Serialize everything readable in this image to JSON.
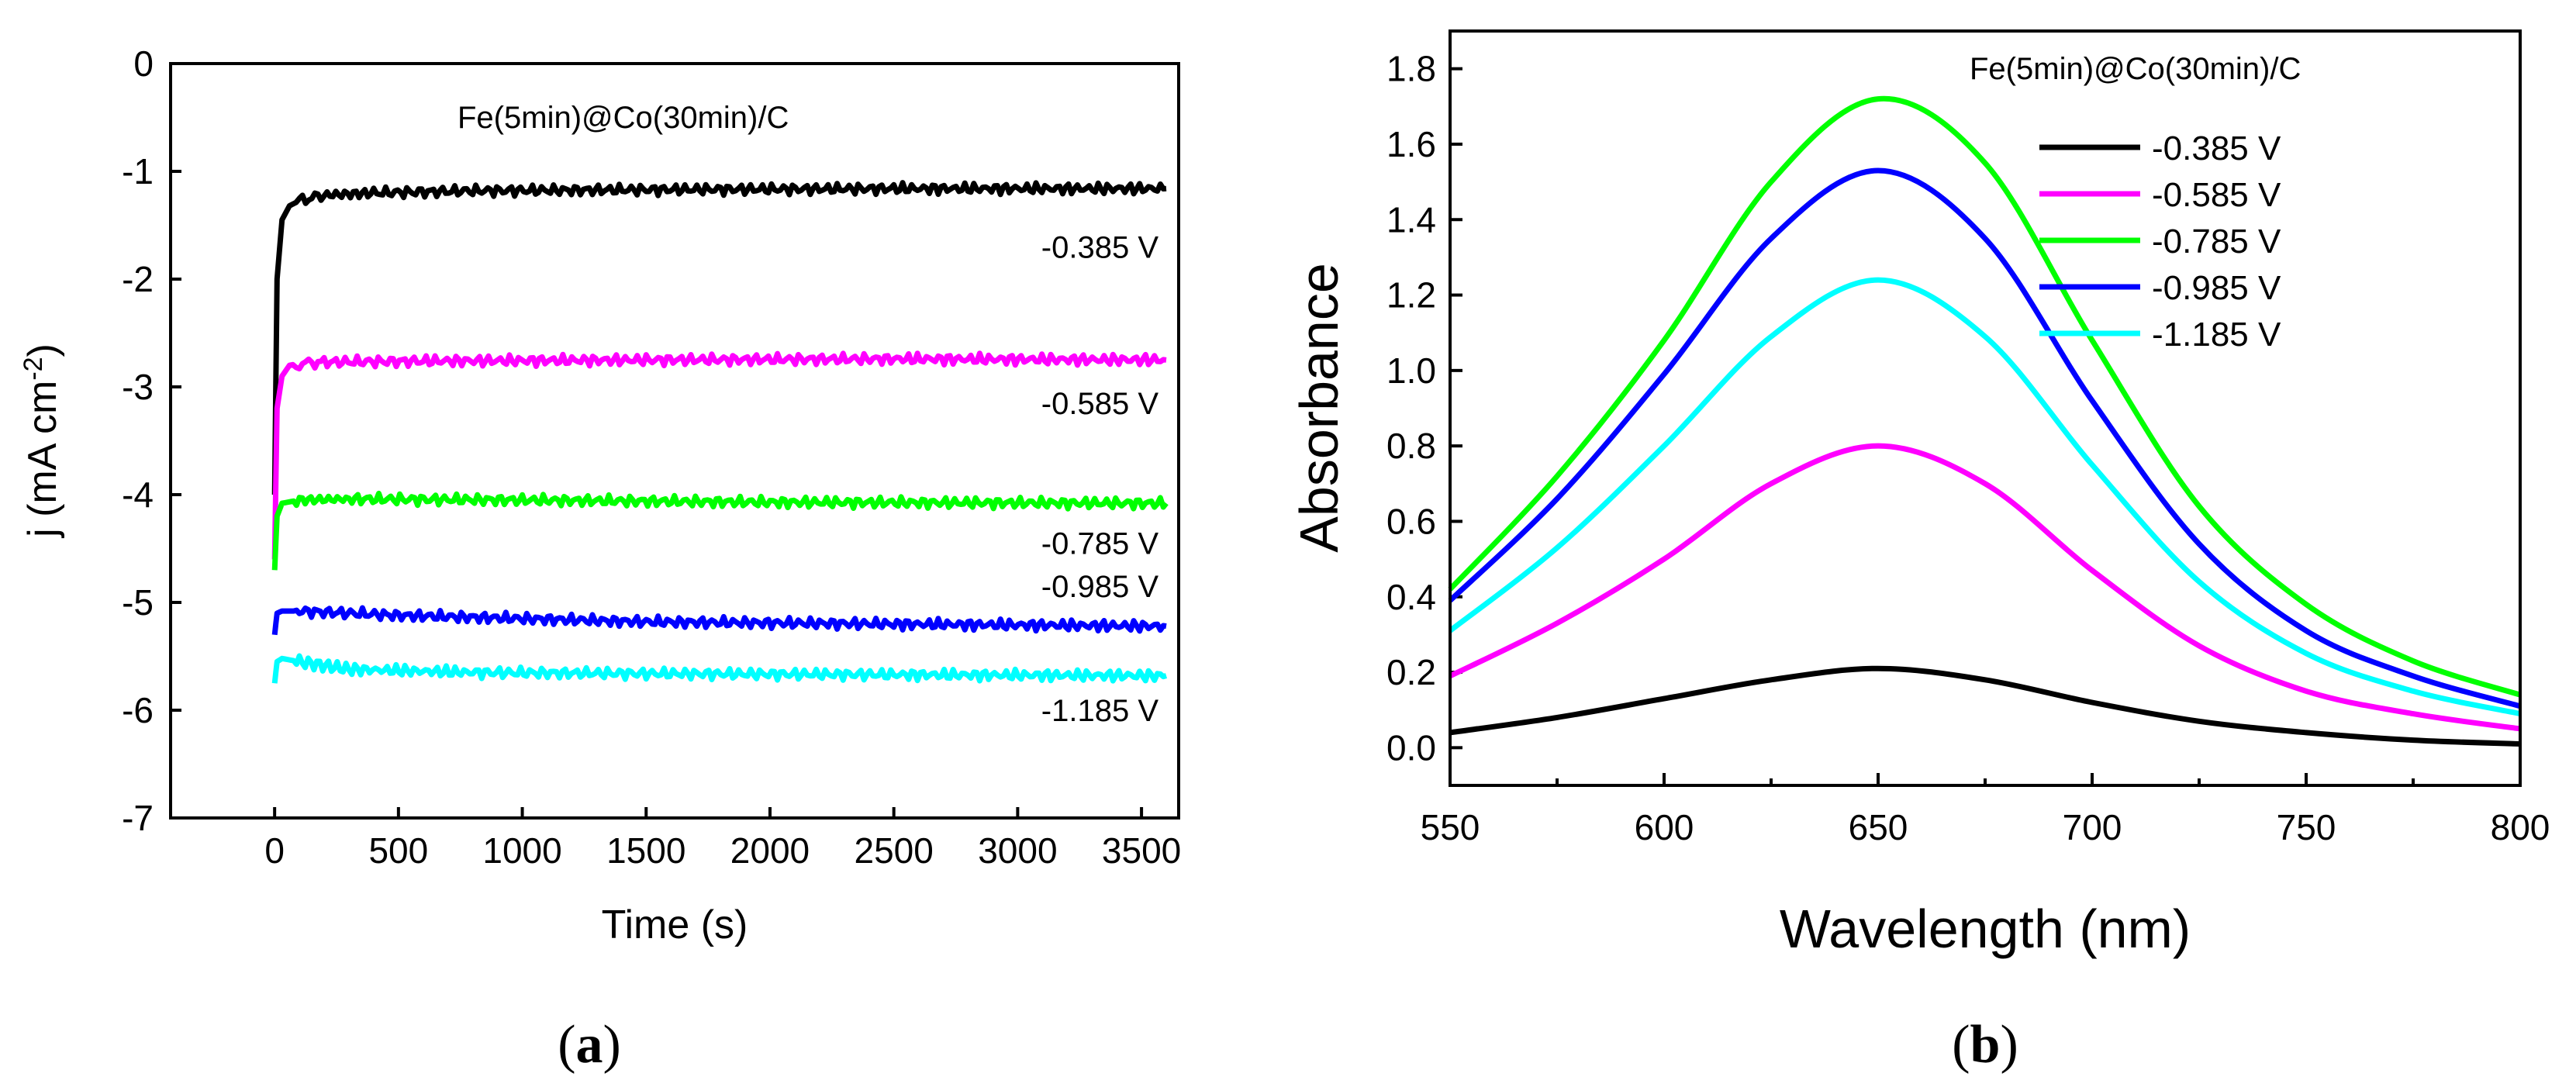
{
  "chart_data": [
    {
      "type": "line",
      "panel_label": "(a)",
      "panel_label_parts": {
        "open": "(",
        "letter": "a",
        "close": ")"
      },
      "title": "Fe(5min)@Co(30min)/C",
      "xlabel": "Time (s)",
      "ylabel": "j (mA cm-2)",
      "ylabel_parts": {
        "main": "j (mA cm",
        "sup": "-2",
        "close": ")"
      },
      "xlim": [
        -420,
        3650
      ],
      "ylim": [
        -7,
        0
      ],
      "xticks": [
        0,
        500,
        1000,
        1500,
        2000,
        2500,
        3000,
        3500
      ],
      "yticks": [
        0,
        -1,
        -2,
        -3,
        -4,
        -5,
        -6,
        -7
      ],
      "series": [
        {
          "name": "-0.385 V",
          "color": "#000000",
          "x": [
            0,
            10,
            30,
            60,
            100,
            200,
            400,
            800,
            1500,
            2500,
            3600
          ],
          "values": [
            -4.0,
            -2.0,
            -1.45,
            -1.32,
            -1.27,
            -1.22,
            -1.2,
            -1.18,
            -1.17,
            -1.16,
            -1.16
          ],
          "label_x": 3600,
          "label_y": -1.7
        },
        {
          "name": "-0.585 V",
          "color": "#ff00ff",
          "x": [
            0,
            10,
            30,
            60,
            100,
            200,
            600,
            1500,
            2500,
            3600
          ],
          "values": [
            -4.6,
            -3.2,
            -2.9,
            -2.8,
            -2.78,
            -2.77,
            -2.76,
            -2.75,
            -2.74,
            -2.75
          ],
          "label_x": 3600,
          "label_y": -3.15
        },
        {
          "name": "-0.785 V",
          "color": "#00ff00",
          "x": [
            0,
            10,
            30,
            100,
            300,
            1000,
            2000,
            3600
          ],
          "values": [
            -4.7,
            -4.2,
            -4.08,
            -4.05,
            -4.04,
            -4.05,
            -4.07,
            -4.08
          ],
          "label_x": 3600,
          "label_y": -4.45
        },
        {
          "name": "-0.985 V",
          "color": "#0000ff",
          "x": [
            0,
            10,
            30,
            100,
            500,
            1500,
            2500,
            3600
          ],
          "values": [
            -5.3,
            -5.1,
            -5.08,
            -5.08,
            -5.12,
            -5.18,
            -5.2,
            -5.22
          ],
          "label_x": 3600,
          "label_y": -4.85
        },
        {
          "name": "-1.185 V",
          "color": "#00ffff",
          "x": [
            0,
            10,
            30,
            100,
            300,
            800,
            1500,
            2500,
            3600
          ],
          "values": [
            -5.75,
            -5.55,
            -5.52,
            -5.55,
            -5.62,
            -5.65,
            -5.66,
            -5.67,
            -5.68
          ],
          "label_x": 3600,
          "label_y": -6.0
        }
      ]
    },
    {
      "type": "line",
      "panel_label": "(b)",
      "panel_label_parts": {
        "open": "(",
        "letter": "b",
        "close": ")"
      },
      "title": "Fe(5min)@Co(30min)/C",
      "xlabel": "Wavelength  (nm)",
      "ylabel": "Absorbance",
      "xlim": [
        550,
        800
      ],
      "ylim": [
        -0.1,
        1.9
      ],
      "xticks": [
        550,
        600,
        650,
        700,
        750,
        800
      ],
      "yticks": [
        0.0,
        0.2,
        0.4,
        0.6,
        0.8,
        1.0,
        1.2,
        1.4,
        1.6,
        1.8
      ],
      "yticks_labels": [
        "0.0",
        "0.2",
        "0.4",
        "0.6",
        "0.8",
        "1.0",
        "1.2",
        "1.4",
        "1.6",
        "1.8"
      ],
      "x": [
        550,
        575,
        600,
        625,
        650,
        675,
        700,
        725,
        750,
        775,
        800
      ],
      "legend_position": "top-right",
      "series": [
        {
          "name": "-0.385 V",
          "color": "#000000",
          "values": [
            0.04,
            0.08,
            0.13,
            0.18,
            0.21,
            0.18,
            0.12,
            0.07,
            0.04,
            0.02,
            0.01
          ]
        },
        {
          "name": "-0.585 V",
          "color": "#ff00ff",
          "values": [
            0.19,
            0.33,
            0.5,
            0.7,
            0.8,
            0.7,
            0.47,
            0.27,
            0.15,
            0.09,
            0.05
          ]
        },
        {
          "name": "-0.785 V",
          "color": "#00ff00",
          "values": [
            0.42,
            0.72,
            1.08,
            1.5,
            1.72,
            1.55,
            1.08,
            0.64,
            0.38,
            0.23,
            0.14
          ]
        },
        {
          "name": "-0.985 V",
          "color": "#0000ff",
          "values": [
            0.39,
            0.66,
            0.99,
            1.35,
            1.53,
            1.35,
            0.92,
            0.54,
            0.31,
            0.19,
            0.11
          ]
        },
        {
          "name": "-1.185 V",
          "color": "#00ffff",
          "values": [
            0.31,
            0.53,
            0.8,
            1.09,
            1.24,
            1.09,
            0.75,
            0.44,
            0.25,
            0.15,
            0.09
          ]
        }
      ]
    }
  ]
}
